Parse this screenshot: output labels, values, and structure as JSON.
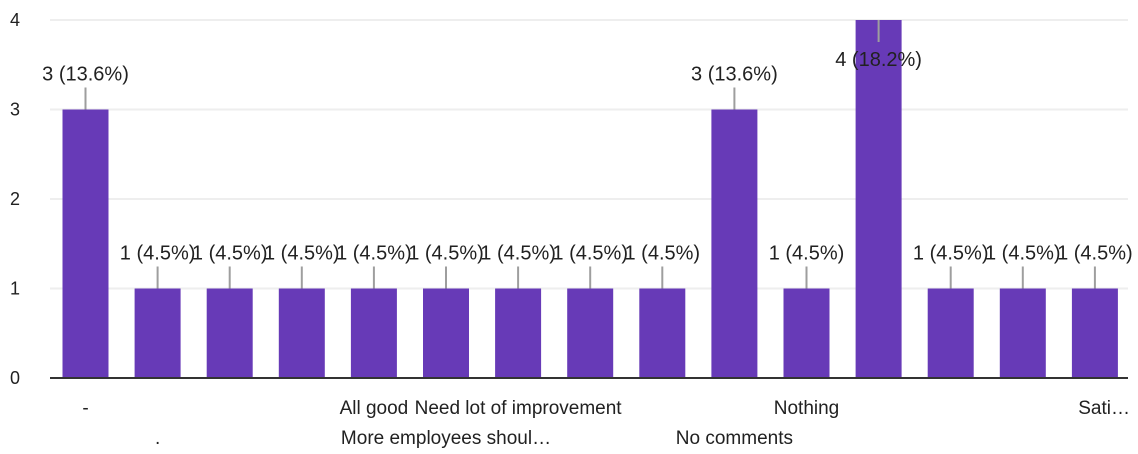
{
  "chart_data": {
    "type": "bar",
    "categories": [
      "-",
      ".",
      "",
      "",
      "All good",
      "More employees shoul…",
      "Need lot of improvement",
      "",
      "",
      "No comments",
      "Nothing",
      "",
      "",
      "",
      "Sati…"
    ],
    "values": [
      3,
      1,
      1,
      1,
      1,
      1,
      1,
      1,
      1,
      3,
      1,
      4,
      1,
      1,
      1
    ],
    "data_labels": [
      "3 (13.6%)",
      "1 (4.5%)",
      "1 (4.5%)",
      "1 (4.5%)",
      "1 (4.5%)",
      "1 (4.5%)",
      "1 (4.5%)",
      "1 (4.5%)",
      "1 (4.5%)",
      "3 (13.6%)",
      "1 (4.5%)",
      "4 (18.2%)",
      "1 (4.5%)",
      "1 (4.5%)",
      "1 (4.5%)"
    ],
    "yticks": [
      "0",
      "1",
      "2",
      "3",
      "4"
    ],
    "ylim": [
      0,
      4
    ],
    "grid": true,
    "title": "",
    "xlabel": "",
    "ylabel": "",
    "colors": {
      "bar": "#673ab7",
      "grid": "#eeeeee",
      "axis": "#333333",
      "leader": "#9e9e9e"
    }
  }
}
